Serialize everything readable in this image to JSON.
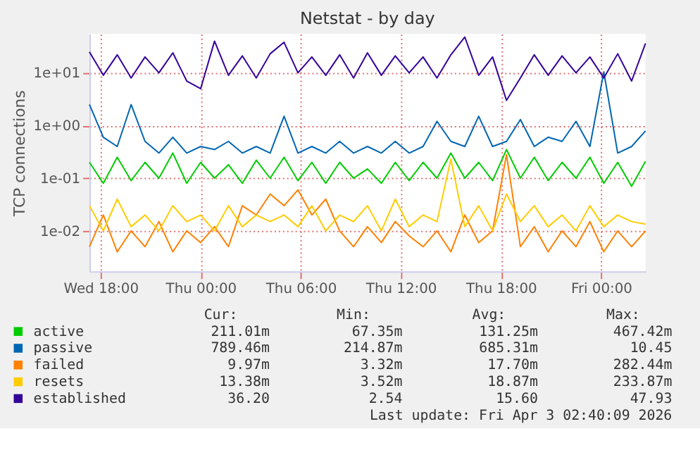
{
  "chart_data": {
    "type": "line",
    "title": "Netstat - by day",
    "ylabel": "TCP connections",
    "x": [
      "2026-04-01T17:20",
      "2026-04-01T18:10",
      "2026-04-01T19:00",
      "2026-04-01T19:50",
      "2026-04-01T20:40",
      "2026-04-01T21:30",
      "2026-04-01T22:20",
      "2026-04-01T23:10",
      "2026-04-02T00:00",
      "2026-04-02T00:50",
      "2026-04-02T01:40",
      "2026-04-02T02:30",
      "2026-04-02T03:20",
      "2026-04-02T04:10",
      "2026-04-02T05:00",
      "2026-04-02T05:50",
      "2026-04-02T06:40",
      "2026-04-02T07:30",
      "2026-04-02T08:20",
      "2026-04-02T09:10",
      "2026-04-02T10:00",
      "2026-04-02T10:50",
      "2026-04-02T11:40",
      "2026-04-02T12:30",
      "2026-04-02T13:20",
      "2026-04-02T14:10",
      "2026-04-02T15:00",
      "2026-04-02T15:50",
      "2026-04-02T16:40",
      "2026-04-02T17:30",
      "2026-04-02T18:20",
      "2026-04-02T19:10",
      "2026-04-02T20:00",
      "2026-04-02T20:50",
      "2026-04-02T21:40",
      "2026-04-02T22:30",
      "2026-04-02T23:20",
      "2026-04-03T00:10",
      "2026-04-03T01:00",
      "2026-04-03T01:50",
      "2026-04-03T02:40"
    ],
    "series": [
      {
        "name": "active",
        "color": "#00cc00",
        "values": [
          0.2,
          0.08,
          0.25,
          0.09,
          0.2,
          0.1,
          0.3,
          0.08,
          0.2,
          0.1,
          0.18,
          0.08,
          0.22,
          0.1,
          0.25,
          0.09,
          0.2,
          0.08,
          0.2,
          0.1,
          0.15,
          0.08,
          0.2,
          0.09,
          0.2,
          0.1,
          0.3,
          0.1,
          0.2,
          0.09,
          0.35,
          0.1,
          0.25,
          0.09,
          0.2,
          0.1,
          0.25,
          0.08,
          0.2,
          0.07,
          0.21
        ]
      },
      {
        "name": "passive",
        "color": "#0066b3",
        "values": [
          2.5,
          0.6,
          0.4,
          2.5,
          0.5,
          0.3,
          0.6,
          0.3,
          0.4,
          0.35,
          0.5,
          0.3,
          0.4,
          0.3,
          1.5,
          0.3,
          0.4,
          0.3,
          0.5,
          0.3,
          0.4,
          0.3,
          0.5,
          0.3,
          0.4,
          1.2,
          0.5,
          0.4,
          1.5,
          0.4,
          0.5,
          1.3,
          0.4,
          0.6,
          0.5,
          1.2,
          0.4,
          10.45,
          0.3,
          0.4,
          0.79
        ]
      },
      {
        "name": "failed",
        "color": "#ff8000",
        "values": [
          0.005,
          0.02,
          0.004,
          0.01,
          0.005,
          0.015,
          0.004,
          0.01,
          0.006,
          0.012,
          0.005,
          0.03,
          0.02,
          0.05,
          0.03,
          0.06,
          0.02,
          0.04,
          0.01,
          0.005,
          0.012,
          0.006,
          0.015,
          0.008,
          0.005,
          0.01,
          0.004,
          0.02,
          0.006,
          0.01,
          0.28,
          0.005,
          0.012,
          0.004,
          0.01,
          0.005,
          0.015,
          0.004,
          0.01,
          0.005,
          0.00997
        ]
      },
      {
        "name": "resets",
        "color": "#ffcc00",
        "values": [
          0.03,
          0.01,
          0.04,
          0.012,
          0.02,
          0.01,
          0.03,
          0.015,
          0.02,
          0.01,
          0.03,
          0.012,
          0.02,
          0.015,
          0.02,
          0.012,
          0.03,
          0.01,
          0.02,
          0.015,
          0.03,
          0.01,
          0.04,
          0.012,
          0.02,
          0.015,
          0.23,
          0.012,
          0.03,
          0.01,
          0.05,
          0.015,
          0.03,
          0.012,
          0.02,
          0.01,
          0.03,
          0.012,
          0.02,
          0.015,
          0.0134
        ]
      },
      {
        "name": "established",
        "color": "#330099",
        "values": [
          25,
          9,
          22,
          8,
          20,
          10,
          24,
          7,
          5,
          40,
          9,
          21,
          8,
          23,
          38,
          10,
          20,
          9,
          22,
          8,
          24,
          9,
          21,
          10,
          20,
          8,
          22,
          47.93,
          9,
          20,
          3,
          8,
          22,
          9,
          21,
          10,
          20,
          8,
          23,
          7,
          36.2
        ]
      }
    ],
    "xlim": [
      "2026-04-01T17:20",
      "2026-04-03T02:40"
    ],
    "xticks": [
      {
        "value": "2026-04-01T18:00",
        "label": "Wed 18:00"
      },
      {
        "value": "2026-04-02T00:00",
        "label": "Thu 00:00"
      },
      {
        "value": "2026-04-02T06:00",
        "label": "Thu 06:00"
      },
      {
        "value": "2026-04-02T12:00",
        "label": "Thu 12:00"
      },
      {
        "value": "2026-04-02T18:00",
        "label": "Thu 18:00"
      },
      {
        "value": "2026-04-03T00:00",
        "label": "Fri 00:00"
      }
    ],
    "ylim": [
      0.0017,
      55
    ],
    "log": "y",
    "yticks": [
      {
        "value": 0.01,
        "label": "1e-02"
      },
      {
        "value": 0.1,
        "label": "1e-01"
      },
      {
        "value": 1,
        "label": "1e+00"
      },
      {
        "value": 10,
        "label": "1e+01"
      }
    ],
    "grid": true,
    "legend": "bottom",
    "annotations": [
      "Cur: Min: Avg: Max:",
      "211.01m 67.35m 131.25m 467.42m",
      "789.46m 214.87m 685.31m 10.45",
      "9.97m 3.32m 17.70m 282.44m",
      "13.38m 3.52m 18.87m 233.87m",
      "36.20 2.54 15.60 47.93",
      "Last update: Fri Apr  3 02:40:09 2026"
    ]
  }
}
